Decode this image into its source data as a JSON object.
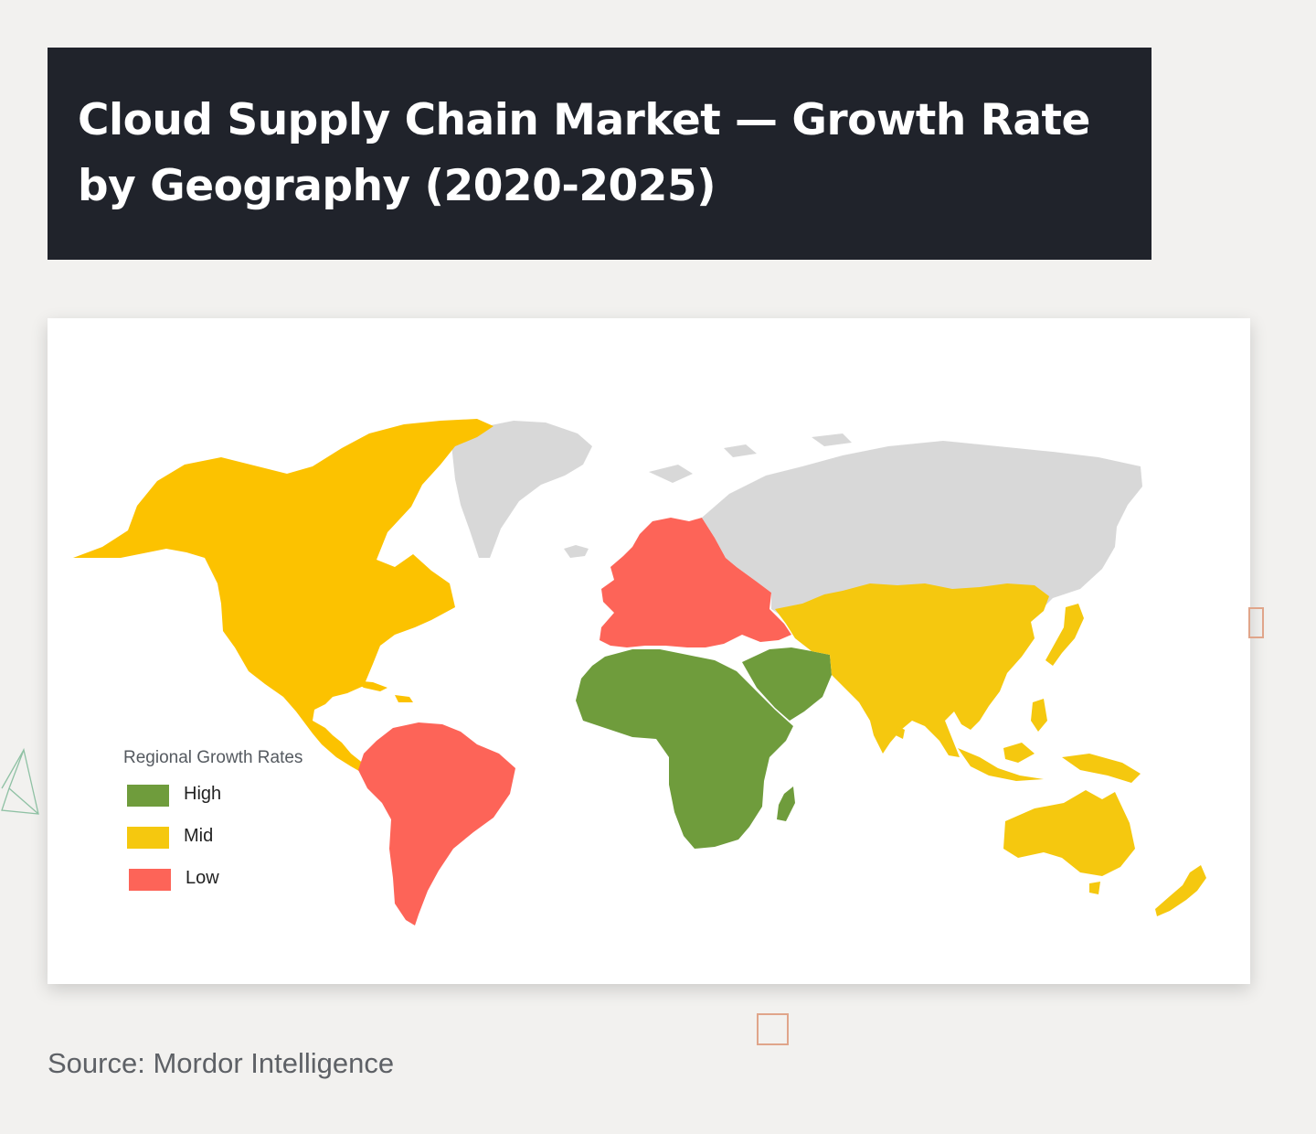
{
  "title": "Cloud Supply Chain Market — Growth Rate by Geography (2020-2025)",
  "legend": {
    "title": "Regional Growth Rates",
    "items": [
      {
        "label": "High",
        "color": "#6f9c3c"
      },
      {
        "label": "Mid",
        "color": "#f5c80f"
      },
      {
        "label": "Low",
        "color": "#fd6458"
      }
    ]
  },
  "regions": [
    {
      "name": "North America",
      "rate": "Mid"
    },
    {
      "name": "South America",
      "rate": "Low"
    },
    {
      "name": "Europe",
      "rate": "Low"
    },
    {
      "name": "Africa",
      "rate": "High"
    },
    {
      "name": "Middle East",
      "rate": "High"
    },
    {
      "name": "Asia-Pacific",
      "rate": "Mid"
    },
    {
      "name": "Greenland",
      "rate": "No data"
    },
    {
      "name": "Russia",
      "rate": "No data"
    }
  ],
  "colors": {
    "no_data": "#d8d8d8",
    "banner": "#20232b",
    "background": "#f2f1ef"
  },
  "source": "Source: Mordor Intelligence"
}
